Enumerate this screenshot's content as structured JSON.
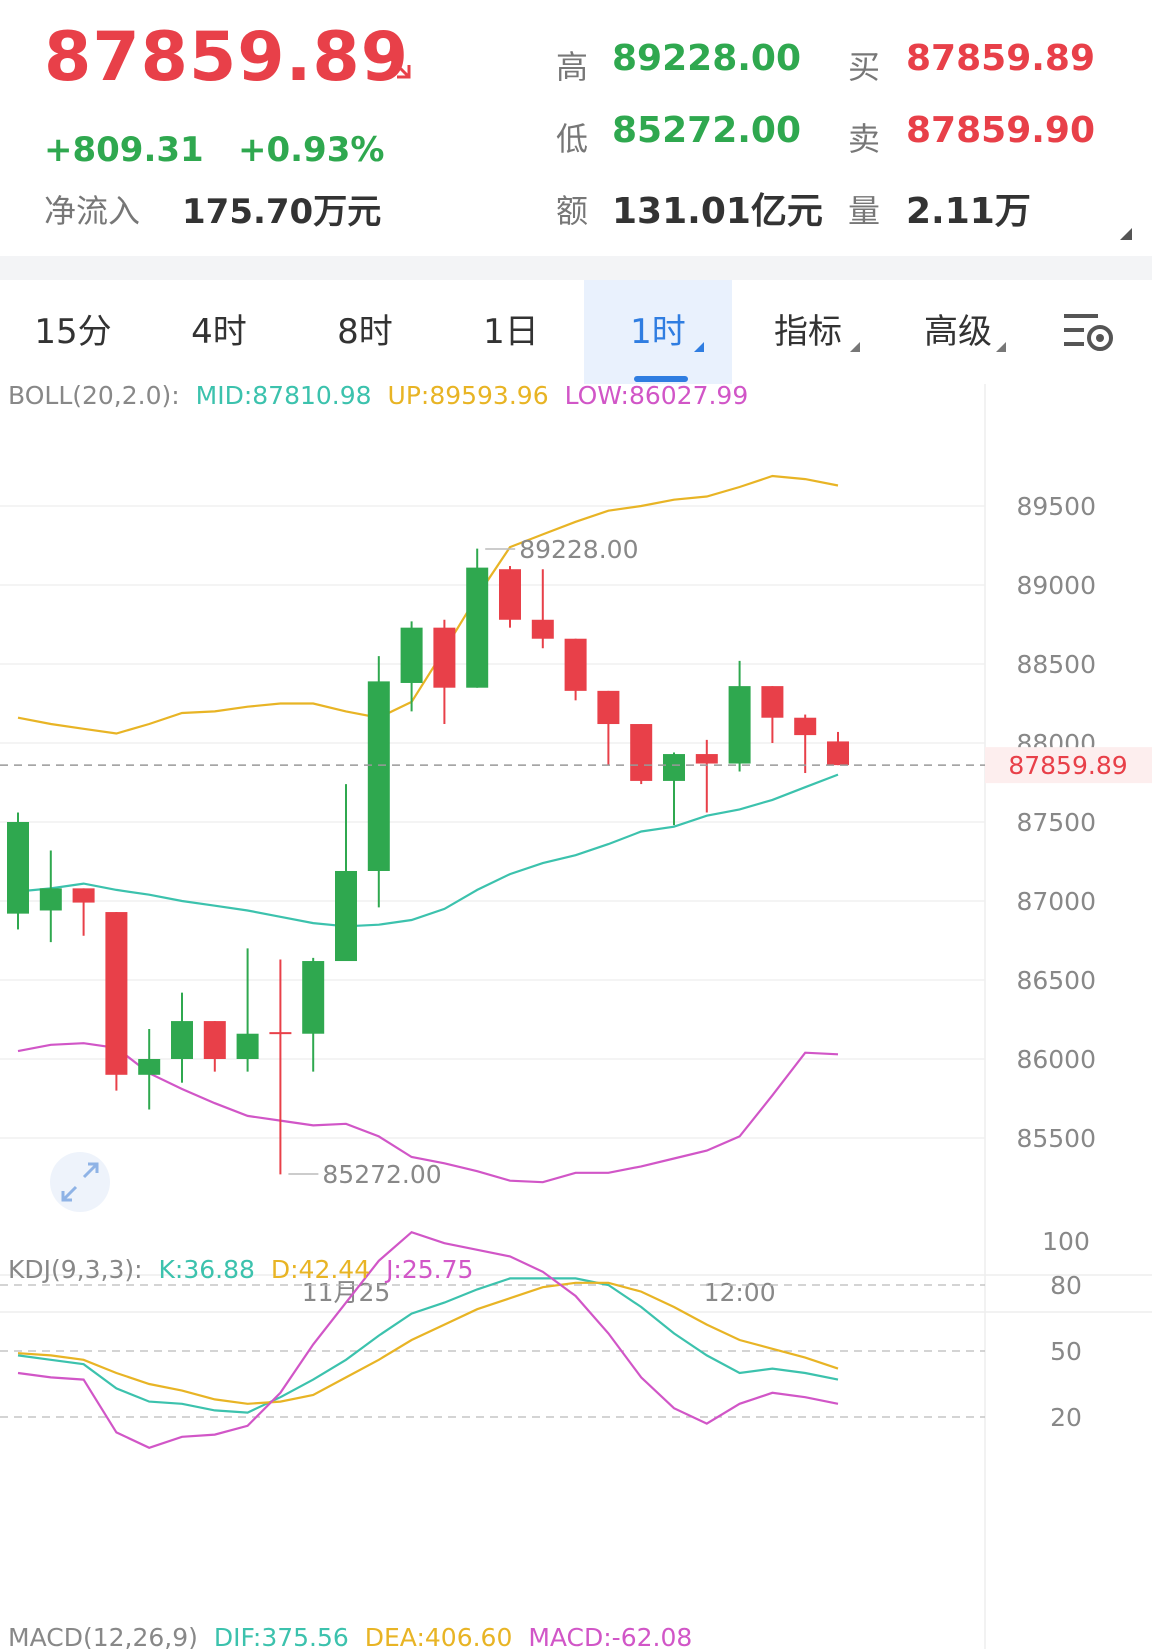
{
  "quote": {
    "price": "87859.89",
    "change": "+809.31",
    "change_pct": "+0.93%",
    "net_inflow_label": "净流入",
    "net_inflow_value": "175.70万元",
    "high_label": "高",
    "high_value": "89228.00",
    "low_label": "低",
    "low_value": "85272.00",
    "amount_label": "额",
    "amount_value": "131.01亿元",
    "bid_label": "买",
    "bid_value": "87859.89",
    "ask_label": "卖",
    "ask_value": "87859.90",
    "volume_label": "量",
    "volume_value": "2.11万"
  },
  "tabs": [
    {
      "label": "15分",
      "active": false,
      "dropdown": false
    },
    {
      "label": "4时",
      "active": false,
      "dropdown": false
    },
    {
      "label": "8时",
      "active": false,
      "dropdown": false
    },
    {
      "label": "1日",
      "active": false,
      "dropdown": false
    },
    {
      "label": "1时",
      "active": true,
      "dropdown": true
    },
    {
      "label": "指标",
      "active": false,
      "dropdown": true
    },
    {
      "label": "高级",
      "active": false,
      "dropdown": true
    }
  ],
  "icons": {
    "price_trend": "arrow-down-right-icon",
    "settings": "chart-settings-icon",
    "fullscreen": "fullscreen-toggle-icon"
  },
  "colors": {
    "up": "#2fa84f",
    "down": "#e84049",
    "mid": "#3cc2ad",
    "upper": "#e8b425",
    "lower": "#d156c7",
    "accent": "#2f7de1"
  },
  "boll_legend": {
    "name": "BOLL(20,2.0):",
    "mid": "MID:87810.98",
    "up": "UP:89593.96",
    "low": "LOW:86027.99"
  },
  "kdj_legend": {
    "name": "KDJ(9,3,3):",
    "k": "K:36.88",
    "d": "D:42.44",
    "j": "J:25.75"
  },
  "macd_legend": {
    "name": "MACD(12,26,9)",
    "dif": "DIF:375.56",
    "dea": "DEA:406.60",
    "macd": "MACD:-62.08"
  },
  "chart_data": [
    {
      "type": "candlestick",
      "panel": "price",
      "interval": "1时",
      "y_ticks": [
        89500,
        89000,
        88500,
        88000,
        87500,
        87000,
        86500,
        86000,
        85500
      ],
      "ylim": [
        85100,
        89800
      ],
      "x_labels": [
        {
          "label": "11月25",
          "at_index": 10
        },
        {
          "label": "12:00",
          "at_index": 22
        }
      ],
      "current_price": 87859.89,
      "high_marker": {
        "label": "89228.00",
        "value": 89228.0,
        "at_index": 14
      },
      "low_marker": {
        "label": "85272.00",
        "value": 85272.0,
        "at_index": 8
      },
      "candles": [
        {
          "o": 86920,
          "h": 87560,
          "l": 86820,
          "c": 87500
        },
        {
          "o": 86940,
          "h": 87320,
          "l": 86740,
          "c": 87080
        },
        {
          "o": 87080,
          "h": 87080,
          "l": 86780,
          "c": 86990
        },
        {
          "o": 86930,
          "h": 86930,
          "l": 85800,
          "c": 85900
        },
        {
          "o": 85900,
          "h": 86190,
          "l": 85680,
          "c": 86000
        },
        {
          "o": 86000,
          "h": 86420,
          "l": 85850,
          "c": 86240
        },
        {
          "o": 86240,
          "h": 86240,
          "l": 85920,
          "c": 86000
        },
        {
          "o": 86000,
          "h": 86700,
          "l": 85920,
          "c": 86160
        },
        {
          "o": 86170,
          "h": 86630,
          "l": 85270,
          "c": 86160
        },
        {
          "o": 86160,
          "h": 86640,
          "l": 85920,
          "c": 86620
        },
        {
          "o": 86620,
          "h": 87740,
          "l": 86620,
          "c": 87190
        },
        {
          "o": 87190,
          "h": 88550,
          "l": 86960,
          "c": 88390
        },
        {
          "o": 88380,
          "h": 88770,
          "l": 88200,
          "c": 88730
        },
        {
          "o": 88730,
          "h": 88780,
          "l": 88120,
          "c": 88350
        },
        {
          "o": 88350,
          "h": 89230,
          "l": 88350,
          "c": 89110
        },
        {
          "o": 89100,
          "h": 89120,
          "l": 88730,
          "c": 88780
        },
        {
          "o": 88780,
          "h": 89100,
          "l": 88600,
          "c": 88660
        },
        {
          "o": 88660,
          "h": 88660,
          "l": 88270,
          "c": 88330
        },
        {
          "o": 88330,
          "h": 88330,
          "l": 87860,
          "c": 88120
        },
        {
          "o": 88120,
          "h": 88120,
          "l": 87740,
          "c": 87760
        },
        {
          "o": 87760,
          "h": 87940,
          "l": 87480,
          "c": 87930
        },
        {
          "o": 87930,
          "h": 88020,
          "l": 87560,
          "c": 87870
        },
        {
          "o": 87870,
          "h": 88520,
          "l": 87820,
          "c": 88360
        },
        {
          "o": 88360,
          "h": 88360,
          "l": 88000,
          "c": 88160
        },
        {
          "o": 88160,
          "h": 88180,
          "l": 87810,
          "c": 88050
        },
        {
          "o": 88010,
          "h": 88070,
          "l": 87860,
          "c": 87860
        }
      ],
      "series": [
        {
          "name": "MID",
          "values": [
            87060,
            87080,
            87110,
            87070,
            87040,
            87000,
            86970,
            86940,
            86900,
            86860,
            86840,
            86850,
            86880,
            86950,
            87070,
            87170,
            87240,
            87290,
            87360,
            87440,
            87470,
            87540,
            87580,
            87640,
            87720,
            87800
          ]
        },
        {
          "name": "UP",
          "values": [
            88160,
            88120,
            88090,
            88060,
            88120,
            88190,
            88200,
            88230,
            88250,
            88250,
            88200,
            88160,
            88260,
            88590,
            88930,
            89240,
            89320,
            89400,
            89470,
            89500,
            89540,
            89560,
            89620,
            89690,
            89670,
            89630
          ]
        },
        {
          "name": "LOW",
          "values": [
            86050,
            86090,
            86100,
            86070,
            85910,
            85810,
            85720,
            85640,
            85610,
            85580,
            85590,
            85510,
            85380,
            85340,
            85290,
            85230,
            85220,
            85280,
            85280,
            85320,
            85370,
            85420,
            85510,
            85770,
            86040,
            86030
          ]
        }
      ]
    },
    {
      "type": "line",
      "panel": "KDJ",
      "y_ticks": [
        100,
        80,
        50,
        20
      ],
      "ylim": [
        0,
        110
      ],
      "series": [
        {
          "name": "K",
          "values": [
            48,
            46,
            44,
            33,
            27,
            26,
            23,
            22,
            29,
            37,
            46,
            57,
            67,
            72,
            78,
            83,
            83,
            83,
            80,
            70,
            58,
            48,
            40,
            42,
            40,
            37
          ]
        },
        {
          "name": "D",
          "values": [
            49,
            48,
            46,
            40,
            35,
            32,
            28,
            26,
            27,
            30,
            38,
            46,
            55,
            62,
            69,
            74,
            79,
            81,
            81,
            77,
            70,
            62,
            55,
            51,
            47,
            42
          ]
        },
        {
          "name": "J",
          "values": [
            40,
            38,
            37,
            13,
            6,
            11,
            12,
            16,
            31,
            53,
            72,
            91,
            104,
            99,
            96,
            93,
            86,
            75,
            58,
            38,
            24,
            17,
            26,
            31,
            29,
            26
          ]
        }
      ]
    }
  ]
}
